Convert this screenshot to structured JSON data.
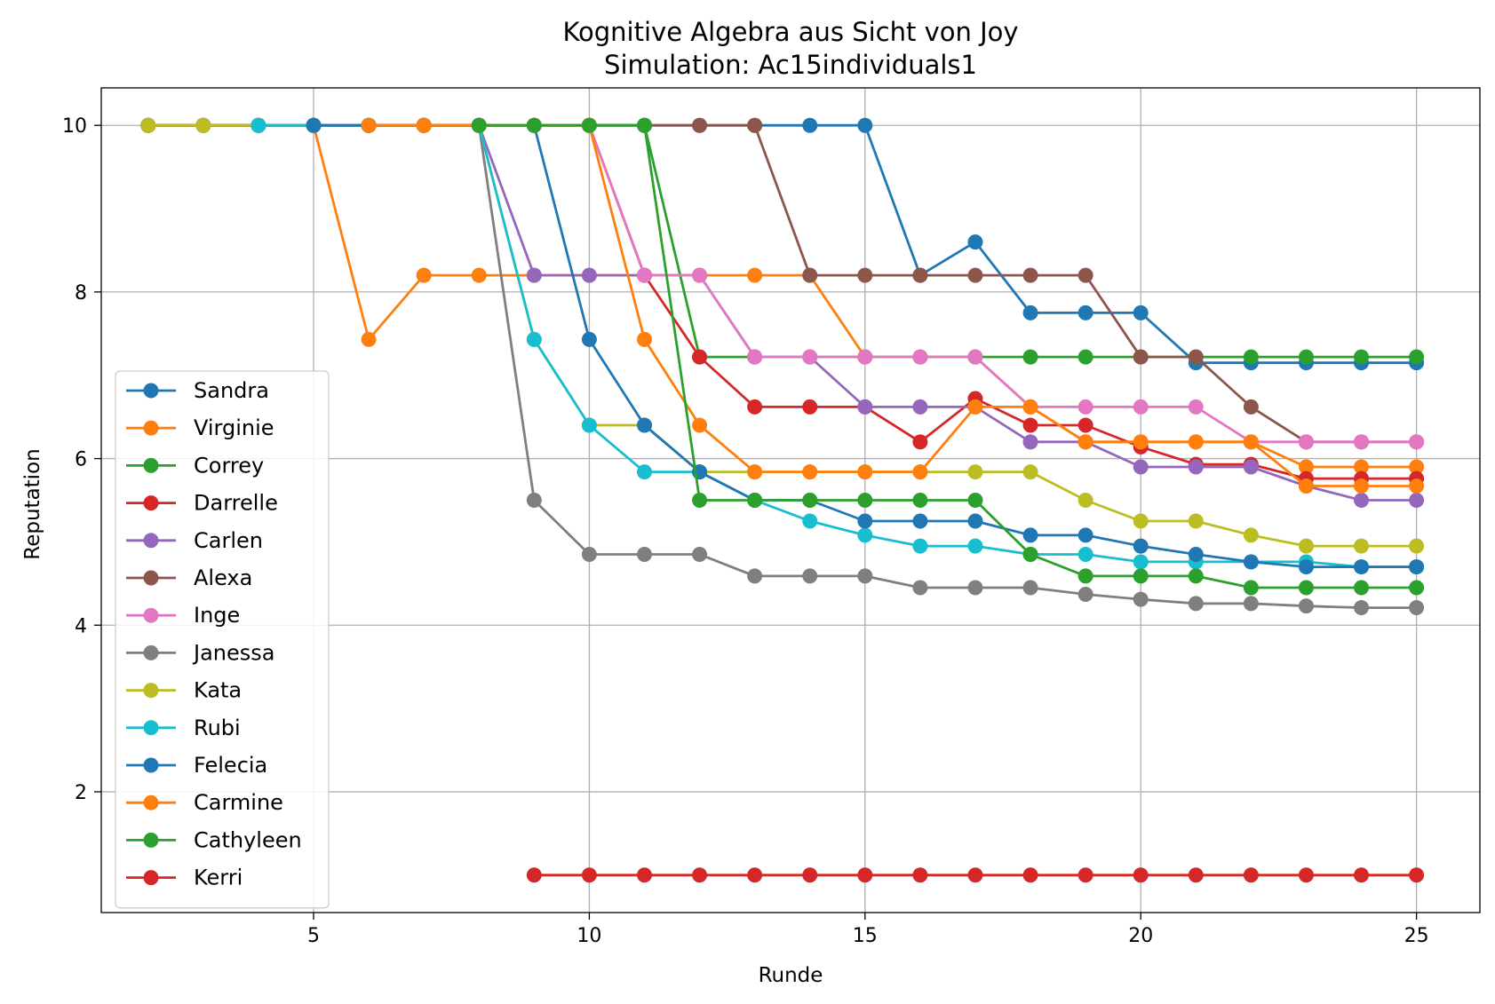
{
  "chart_data": {
    "type": "line",
    "title": "Kognitive Algebra aus Sicht von Joy",
    "subtitle": "Simulation: Ac15individuals1",
    "xlabel": "Runde",
    "ylabel": "Reputation",
    "xlim": [
      1.15,
      26.15
    ],
    "ylim": [
      0.55,
      10.45
    ],
    "xticks": [
      5,
      10,
      15,
      20,
      25
    ],
    "yticks": [
      2,
      4,
      6,
      8,
      10
    ],
    "grid": true,
    "legend_position": "lower-left",
    "series": [
      {
        "name": "Sandra",
        "color": "#1f77b4",
        "x": [
          2,
          3,
          4,
          5,
          6,
          7,
          8,
          9,
          10,
          11,
          12,
          13,
          14,
          15,
          16,
          17,
          18,
          19,
          20,
          21,
          22,
          23,
          24,
          25
        ],
        "y": [
          10,
          10,
          10,
          10,
          10,
          10,
          10,
          10,
          10,
          10,
          10,
          10,
          10,
          10,
          8.2,
          8.6,
          7.75,
          7.75,
          7.75,
          7.15,
          7.15,
          7.15,
          7.15,
          7.15
        ]
      },
      {
        "name": "Virginie",
        "color": "#ff7f0e",
        "x": [
          2,
          3,
          4,
          5,
          6,
          7,
          8,
          9,
          10,
          11,
          12,
          13,
          14,
          15,
          16,
          17,
          18,
          19,
          20,
          21,
          22,
          23,
          24,
          25
        ],
        "y": [
          10,
          10,
          10,
          10,
          7.43,
          8.2,
          8.2,
          8.2,
          8.2,
          8.2,
          8.2,
          8.2,
          8.2,
          7.22,
          7.22,
          7.22,
          6.62,
          6.2,
          6.2,
          6.2,
          6.2,
          5.9,
          5.9,
          5.9
        ]
      },
      {
        "name": "Correy",
        "color": "#2ca02c",
        "x": [
          2,
          3,
          4,
          5,
          6,
          7,
          8,
          9,
          10,
          11,
          12,
          13,
          14,
          15,
          16,
          17,
          18,
          19,
          20,
          21,
          22,
          23,
          24,
          25
        ],
        "y": [
          10,
          10,
          10,
          10,
          10,
          10,
          10,
          10,
          10,
          10,
          7.22,
          7.22,
          7.22,
          7.22,
          7.22,
          7.22,
          7.22,
          7.22,
          7.22,
          7.22,
          7.22,
          7.22,
          7.22,
          7.22
        ]
      },
      {
        "name": "Darrelle",
        "color": "#d62728",
        "x": [
          2,
          3,
          4,
          5,
          6,
          7,
          8,
          9,
          10,
          11,
          12,
          13,
          14,
          15,
          16,
          17,
          18,
          19,
          20,
          21,
          22,
          23,
          24,
          25
        ],
        "y": [
          10,
          10,
          10,
          10,
          10,
          10,
          10,
          10,
          10,
          8.2,
          7.22,
          6.62,
          6.62,
          6.62,
          6.2,
          6.72,
          6.4,
          6.4,
          6.14,
          5.93,
          5.93,
          5.76,
          5.76,
          5.76
        ]
      },
      {
        "name": "Carlen",
        "color": "#9467bd",
        "x": [
          2,
          3,
          4,
          5,
          6,
          7,
          8,
          9,
          10,
          11,
          12,
          13,
          14,
          15,
          16,
          17,
          18,
          19,
          20,
          21,
          22,
          23,
          24,
          25
        ],
        "y": [
          10,
          10,
          10,
          10,
          10,
          10,
          10,
          8.2,
          8.2,
          8.2,
          8.2,
          7.22,
          7.22,
          6.62,
          6.62,
          6.62,
          6.2,
          6.2,
          5.9,
          5.9,
          5.9,
          5.67,
          5.5,
          5.5
        ]
      },
      {
        "name": "Alexa",
        "color": "#8c564b",
        "x": [
          2,
          3,
          4,
          5,
          6,
          7,
          8,
          9,
          10,
          11,
          12,
          13,
          14,
          15,
          16,
          17,
          18,
          19,
          20,
          21,
          22,
          23,
          24,
          25
        ],
        "y": [
          10,
          10,
          10,
          10,
          10,
          10,
          10,
          10,
          10,
          10,
          10,
          10,
          8.2,
          8.2,
          8.2,
          8.2,
          8.2,
          8.2,
          7.22,
          7.22,
          6.62,
          6.2,
          6.2,
          6.2
        ]
      },
      {
        "name": "Inge",
        "color": "#e377c2",
        "x": [
          2,
          3,
          4,
          5,
          6,
          7,
          8,
          9,
          10,
          11,
          12,
          13,
          14,
          15,
          16,
          17,
          18,
          19,
          20,
          21,
          22,
          23,
          24,
          25
        ],
        "y": [
          10,
          10,
          10,
          10,
          10,
          10,
          10,
          10,
          10,
          8.2,
          8.2,
          7.22,
          7.22,
          7.22,
          7.22,
          7.22,
          6.62,
          6.62,
          6.62,
          6.62,
          6.2,
          6.2,
          6.2,
          6.2
        ]
      },
      {
        "name": "Janessa",
        "color": "#7f7f7f",
        "x": [
          2,
          3,
          4,
          5,
          6,
          7,
          8,
          9,
          10,
          11,
          12,
          13,
          14,
          15,
          16,
          17,
          18,
          19,
          20,
          21,
          22,
          23,
          24,
          25
        ],
        "y": [
          10,
          10,
          10,
          10,
          10,
          10,
          10,
          5.5,
          4.85,
          4.85,
          4.85,
          4.59,
          4.59,
          4.59,
          4.45,
          4.45,
          4.45,
          4.37,
          4.31,
          4.26,
          4.26,
          4.23,
          4.21,
          4.21
        ]
      },
      {
        "name": "Kata",
        "color": "#bcbd22",
        "x": [
          2,
          3,
          4,
          5,
          6,
          7,
          8,
          9,
          10,
          11,
          12,
          13,
          14,
          15,
          16,
          17,
          18,
          19,
          20,
          21,
          22,
          23,
          24,
          25
        ],
        "y": [
          10,
          10,
          10,
          10,
          10,
          10,
          10,
          7.43,
          6.4,
          6.4,
          5.84,
          5.84,
          5.84,
          5.84,
          5.84,
          5.84,
          5.84,
          5.5,
          5.25,
          5.25,
          5.08,
          4.95,
          4.95,
          4.95
        ]
      },
      {
        "name": "Rubi",
        "color": "#17becf",
        "x": [
          4,
          5,
          6,
          7,
          8,
          9,
          10,
          11,
          12,
          13,
          14,
          15,
          16,
          17,
          18,
          19,
          20,
          21,
          22,
          23,
          24,
          25
        ],
        "y": [
          10,
          10,
          10,
          10,
          10,
          7.43,
          6.4,
          5.84,
          5.84,
          5.5,
          5.25,
          5.08,
          4.95,
          4.95,
          4.85,
          4.85,
          4.76,
          4.76,
          4.76,
          4.76,
          4.7,
          4.7
        ]
      },
      {
        "name": "Felecia",
        "color": "#1f77b4",
        "x": [
          5,
          6,
          7,
          8,
          9,
          10,
          11,
          12,
          13,
          14,
          15,
          16,
          17,
          18,
          19,
          20,
          21,
          22,
          23,
          24,
          25
        ],
        "y": [
          10,
          10,
          10,
          10,
          10,
          7.43,
          6.4,
          5.84,
          5.5,
          5.5,
          5.25,
          5.25,
          5.25,
          5.08,
          5.08,
          4.95,
          4.85,
          4.76,
          4.7,
          4.7,
          4.7
        ]
      },
      {
        "name": "Carmine",
        "color": "#ff7f0e",
        "x": [
          6,
          7,
          8,
          9,
          10,
          11,
          12,
          13,
          14,
          15,
          16,
          17,
          18,
          19,
          20,
          21,
          22,
          23,
          24,
          25
        ],
        "y": [
          10,
          10,
          10,
          10,
          10,
          7.43,
          6.4,
          5.84,
          5.84,
          5.84,
          5.84,
          6.62,
          6.62,
          6.2,
          6.2,
          6.2,
          6.2,
          5.67,
          5.67,
          5.67
        ]
      },
      {
        "name": "Cathyleen",
        "color": "#2ca02c",
        "x": [
          8,
          9,
          10,
          11,
          12,
          13,
          14,
          15,
          16,
          17,
          18,
          19,
          20,
          21,
          22,
          23,
          24,
          25
        ],
        "y": [
          10,
          10,
          10,
          10,
          5.5,
          5.5,
          5.5,
          5.5,
          5.5,
          5.5,
          4.85,
          4.59,
          4.59,
          4.59,
          4.45,
          4.45,
          4.45,
          4.45
        ]
      },
      {
        "name": "Kerri",
        "color": "#d62728",
        "x": [
          9,
          10,
          11,
          12,
          13,
          14,
          15,
          16,
          17,
          18,
          19,
          20,
          21,
          22,
          23,
          24,
          25
        ],
        "y": [
          1,
          1,
          1,
          1,
          1,
          1,
          1,
          1,
          1,
          1,
          1,
          1,
          1,
          1,
          1,
          1,
          1
        ]
      }
    ]
  }
}
